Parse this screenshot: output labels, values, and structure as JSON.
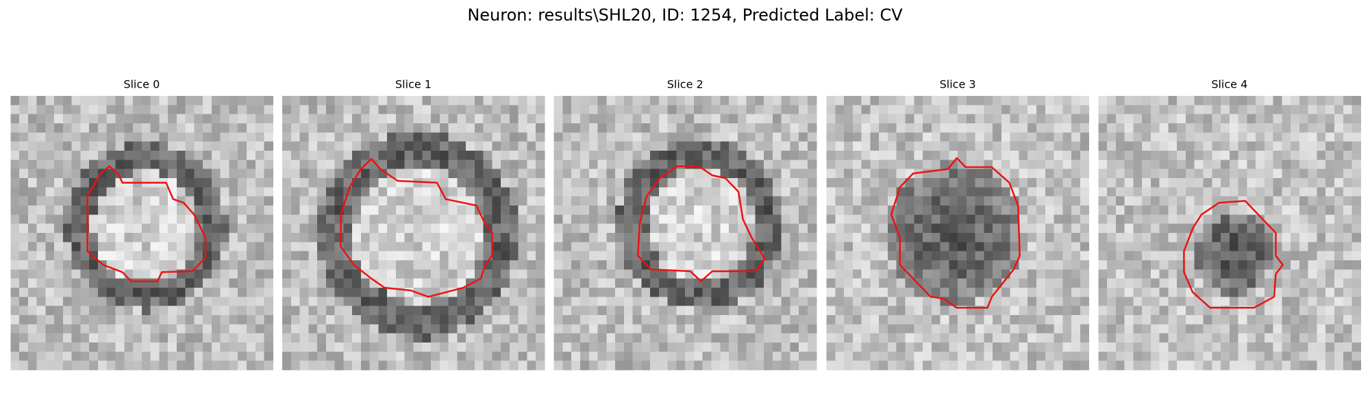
{
  "title": "Neuron: results\\SHL20, ID: 1254, Predicted Label: CV",
  "panels": [
    {
      "title": "Slice 0"
    },
    {
      "title": "Slice 1"
    },
    {
      "title": "Slice 2"
    },
    {
      "title": "Slice 3"
    },
    {
      "title": "Slice 4"
    }
  ]
}
